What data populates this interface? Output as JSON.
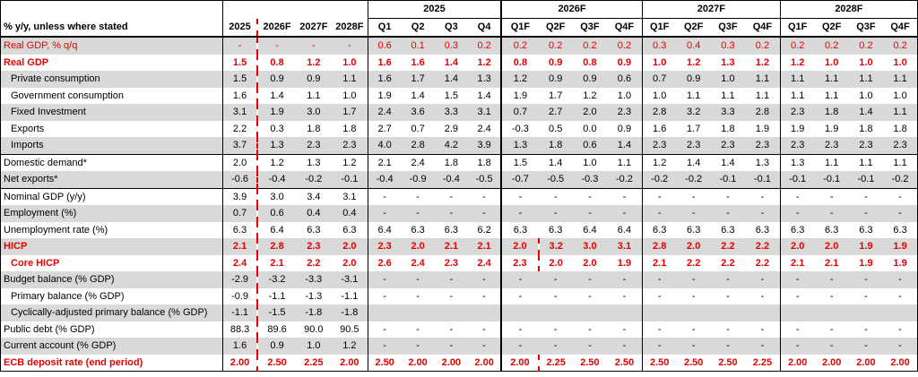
{
  "header": {
    "row_label": "% y/y, unless where stated",
    "annual_cols": [
      "2025",
      "2026F",
      "2027F",
      "2028F"
    ],
    "groups": [
      {
        "title": "2025",
        "quarters": [
          "Q1",
          "Q2",
          "Q3",
          "Q4"
        ]
      },
      {
        "title": "2026F",
        "quarters": [
          "Q1F",
          "Q2F",
          "Q3F",
          "Q4F"
        ]
      },
      {
        "title": "2027F",
        "quarters": [
          "Q1F",
          "Q2F",
          "Q3F",
          "Q4F"
        ]
      },
      {
        "title": "2028F",
        "quarters": [
          "Q1F",
          "Q2F",
          "Q3F",
          "Q4F"
        ]
      }
    ]
  },
  "rows": [
    {
      "label": "Real GDP, % q/q",
      "annual": [
        "-",
        "-",
        "-",
        "-"
      ],
      "quarters": [
        "0.6",
        "0.1",
        "0.3",
        "0.2",
        "0.2",
        "0.2",
        "0.2",
        "0.2",
        "0.3",
        "0.4",
        "0.3",
        "0.2",
        "0.2",
        "0.2",
        "0.2",
        "0.2"
      ]
    },
    {
      "label": "Real GDP",
      "annual": [
        "1.5",
        "0.8",
        "1.2",
        "1.0"
      ],
      "quarters": [
        "1.6",
        "1.6",
        "1.4",
        "1.2",
        "0.8",
        "0.9",
        "0.8",
        "0.9",
        "1.0",
        "1.2",
        "1.3",
        "1.2",
        "1.2",
        "1.0",
        "1.0",
        "1.0"
      ]
    },
    {
      "label": "Private consumption",
      "annual": [
        "1.5",
        "0.9",
        "0.9",
        "1.1"
      ],
      "quarters": [
        "1.6",
        "1.7",
        "1.4",
        "1.3",
        "1.2",
        "0.9",
        "0.9",
        "0.6",
        "0.7",
        "0.9",
        "1.0",
        "1.1",
        "1.1",
        "1.1",
        "1.1",
        "1.1"
      ]
    },
    {
      "label": "Government consumption",
      "annual": [
        "1.6",
        "1.4",
        "1.1",
        "1.0"
      ],
      "quarters": [
        "1.9",
        "1.4",
        "1.5",
        "1.4",
        "1.9",
        "1.7",
        "1.2",
        "1.0",
        "1.0",
        "1.1",
        "1.1",
        "1.1",
        "1.1",
        "1.1",
        "1.0",
        "1.0"
      ]
    },
    {
      "label": "Fixed Investment",
      "annual": [
        "3.1",
        "1.9",
        "3.0",
        "1.7"
      ],
      "quarters": [
        "2.4",
        "3.6",
        "3.3",
        "3.1",
        "0.7",
        "2.7",
        "2.0",
        "2.3",
        "2.8",
        "3.2",
        "3.3",
        "2.8",
        "2.3",
        "1.8",
        "1.4",
        "1.1"
      ]
    },
    {
      "label": "Exports",
      "annual": [
        "2.2",
        "0.3",
        "1.8",
        "1.8"
      ],
      "quarters": [
        "2.7",
        "0.7",
        "2.9",
        "2.4",
        "-0.3",
        "0.5",
        "0.0",
        "0.9",
        "1.6",
        "1.7",
        "1.8",
        "1.9",
        "1.9",
        "1.9",
        "1.8",
        "1.8"
      ]
    },
    {
      "label": "Imports",
      "annual": [
        "3.7",
        "1.3",
        "2.3",
        "2.3"
      ],
      "quarters": [
        "4.0",
        "2.8",
        "4.2",
        "3.9",
        "1.3",
        "1.8",
        "0.6",
        "1.4",
        "2.3",
        "2.3",
        "2.3",
        "2.3",
        "2.3",
        "2.3",
        "2.3",
        "2.3"
      ]
    },
    {
      "label": "Domestic demand*",
      "annual": [
        "2.0",
        "1.2",
        "1.3",
        "1.2"
      ],
      "quarters": [
        "2.1",
        "2.4",
        "1.8",
        "1.8",
        "1.5",
        "1.4",
        "1.0",
        "1.1",
        "1.2",
        "1.4",
        "1.4",
        "1.3",
        "1.3",
        "1.1",
        "1.1",
        "1.1"
      ]
    },
    {
      "label": "Net exports*",
      "annual": [
        "-0.6",
        "-0.4",
        "-0.2",
        "-0.1"
      ],
      "quarters": [
        "-0.4",
        "-0.9",
        "-0.4",
        "-0.5",
        "-0.7",
        "-0.5",
        "-0.3",
        "-0.2",
        "-0.2",
        "-0.2",
        "-0.1",
        "-0.1",
        "-0.1",
        "-0.1",
        "-0.1",
        "-0.2"
      ]
    },
    {
      "label": "Nominal GDP (y/y)",
      "annual": [
        "3.9",
        "3.0",
        "3.4",
        "3.1"
      ],
      "quarters": [
        "-",
        "-",
        "-",
        "-",
        "-",
        "-",
        "-",
        "-",
        "-",
        "-",
        "-",
        "-",
        "-",
        "-",
        "-",
        "-"
      ]
    },
    {
      "label": "Employment (%)",
      "annual": [
        "0.7",
        "0.6",
        "0.4",
        "0.4"
      ],
      "quarters": [
        "-",
        "-",
        "-",
        "-",
        "-",
        "-",
        "-",
        "-",
        "-",
        "-",
        "-",
        "-",
        "-",
        "-",
        "-",
        "-"
      ]
    },
    {
      "label": "Unemployment rate (%)",
      "annual": [
        "6.3",
        "6.4",
        "6.3",
        "6.3"
      ],
      "quarters": [
        "6.4",
        "6.3",
        "6.3",
        "6.2",
        "6.3",
        "6.3",
        "6.4",
        "6.4",
        "6.3",
        "6.3",
        "6.3",
        "6.3",
        "6.3",
        "6.3",
        "6.3",
        "6.3"
      ]
    },
    {
      "label": "HICP",
      "annual": [
        "2.1",
        "2.8",
        "2.3",
        "2.0"
      ],
      "quarters": [
        "2.3",
        "2.0",
        "2.1",
        "2.1",
        "2.0",
        "3.2",
        "3.0",
        "3.1",
        "2.8",
        "2.0",
        "2.2",
        "2.2",
        "2.0",
        "2.0",
        "1.9",
        "1.9"
      ]
    },
    {
      "label": "Core HICP",
      "annual": [
        "2.4",
        "2.1",
        "2.2",
        "2.0"
      ],
      "quarters": [
        "2.6",
        "2.4",
        "2.3",
        "2.4",
        "2.3",
        "2.0",
        "2.0",
        "1.9",
        "2.1",
        "2.2",
        "2.2",
        "2.2",
        "2.1",
        "2.1",
        "1.9",
        "1.9"
      ]
    },
    {
      "label": "Budget balance (% GDP)",
      "annual": [
        "-2.9",
        "-3.2",
        "-3.3",
        "-3.1"
      ],
      "quarters": [
        "-",
        "-",
        "-",
        "-",
        "-",
        "-",
        "-",
        "-",
        "-",
        "-",
        "-",
        "-",
        "-",
        "-",
        "-",
        "-"
      ]
    },
    {
      "label": "Primary balance (% GDP)",
      "annual": [
        "-0.9",
        "-1.1",
        "-1.3",
        "-1.1"
      ],
      "quarters": [
        "-",
        "-",
        "-",
        "-",
        "-",
        "-",
        "-",
        "-",
        "-",
        "-",
        "-",
        "-",
        "-",
        "-",
        "-",
        "-"
      ]
    },
    {
      "label": "Cyclically-adjusted primary balance (% GDP)",
      "annual": [
        "-1.1",
        "-1.5",
        "-1.8",
        "-1.8"
      ],
      "quarters": [
        "",
        "",
        "",
        "",
        "",
        "",
        "",
        "",
        "",
        "",
        "",
        "",
        "",
        "",
        "",
        ""
      ]
    },
    {
      "label": "Public debt (% GDP)",
      "annual": [
        "88.3",
        "89.6",
        "90.0",
        "90.5"
      ],
      "quarters": [
        "-",
        "-",
        "-",
        "-",
        "-",
        "-",
        "-",
        "-",
        "-",
        "-",
        "-",
        "-",
        "-",
        "-",
        "-",
        "-"
      ]
    },
    {
      "label": "Current account (% GDP)",
      "annual": [
        "1.6",
        "0.9",
        "1.0",
        "1.2"
      ],
      "quarters": [
        "-",
        "-",
        "-",
        "-",
        "-",
        "-",
        "-",
        "-",
        "-",
        "-",
        "-",
        "-",
        "-",
        "-",
        "-",
        "-"
      ]
    },
    {
      "label": "ECB deposit rate (end period)",
      "annual": [
        "2.00",
        "2.50",
        "2.25",
        "2.00"
      ],
      "quarters": [
        "2.50",
        "2.00",
        "2.00",
        "2.00",
        "2.00",
        "2.25",
        "2.50",
        "2.50",
        "2.50",
        "2.50",
        "2.50",
        "2.25",
        "2.00",
        "2.00",
        "2.00",
        "2.00"
      ]
    }
  ],
  "colors": {
    "accent_red": "#e60000",
    "shade": "#d9d9d9",
    "border": "#000000"
  }
}
